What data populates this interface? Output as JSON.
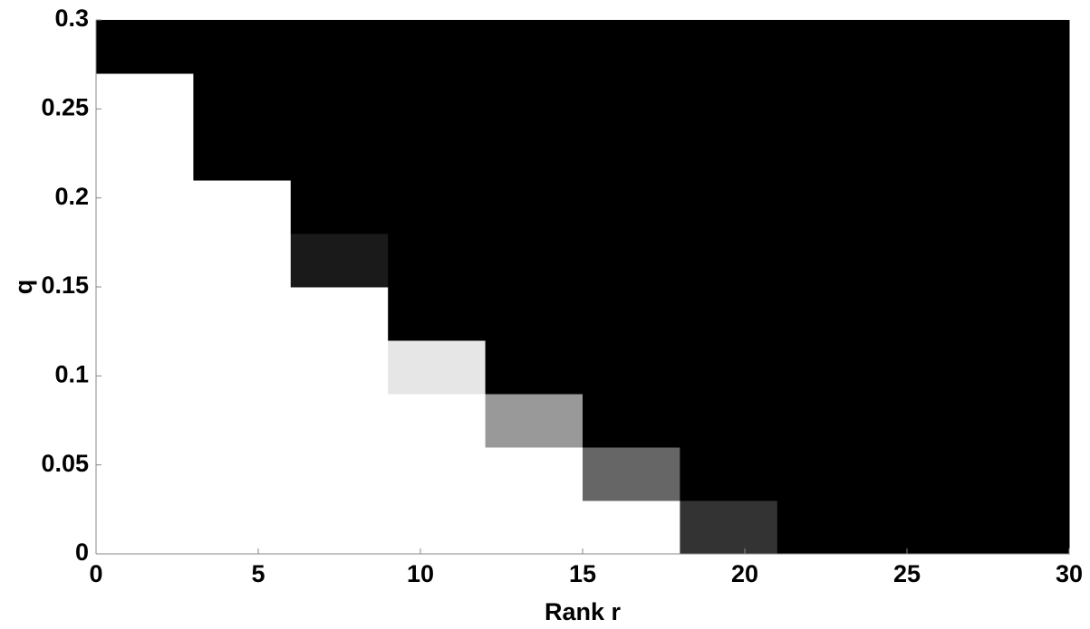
{
  "chart_data": {
    "type": "heatmap",
    "x_label": "Rank r",
    "y_label": "q",
    "x_edges": [
      0,
      3,
      6,
      9,
      12,
      15,
      18,
      21,
      24,
      27,
      30
    ],
    "y_edges": [
      0,
      0.03,
      0.06,
      0.09,
      0.12,
      0.15,
      0.18,
      0.21,
      0.24,
      0.27,
      0.3
    ],
    "z": [
      [
        1,
        1,
        1,
        1,
        1,
        1,
        0.2,
        0,
        0,
        0
      ],
      [
        1,
        1,
        1,
        1,
        1,
        0.4,
        0,
        0,
        0,
        0
      ],
      [
        1,
        1,
        1,
        1,
        0.6,
        0,
        0,
        0,
        0,
        0
      ],
      [
        1,
        1,
        1,
        0.9,
        0,
        0,
        0,
        0,
        0,
        0
      ],
      [
        1,
        1,
        1,
        0,
        0,
        0,
        0,
        0,
        0,
        0
      ],
      [
        1,
        1,
        0.1,
        0,
        0,
        0,
        0,
        0,
        0,
        0
      ],
      [
        1,
        1,
        0,
        0,
        0,
        0,
        0,
        0,
        0,
        0
      ],
      [
        1,
        0,
        0,
        0,
        0,
        0,
        0,
        0,
        0,
        0
      ],
      [
        1,
        0,
        0,
        0,
        0,
        0,
        0,
        0,
        0,
        0
      ],
      [
        0,
        0,
        0,
        0,
        0,
        0,
        0,
        0,
        0,
        0
      ]
    ],
    "colormap": "gray",
    "xlim": [
      0,
      30
    ],
    "xticks": [
      0,
      5,
      10,
      15,
      20,
      25,
      30
    ],
    "ylim": [
      0,
      0.3
    ],
    "yticks": [
      0,
      0.05,
      0.1,
      0.15,
      0.2,
      0.25,
      0.3
    ]
  }
}
